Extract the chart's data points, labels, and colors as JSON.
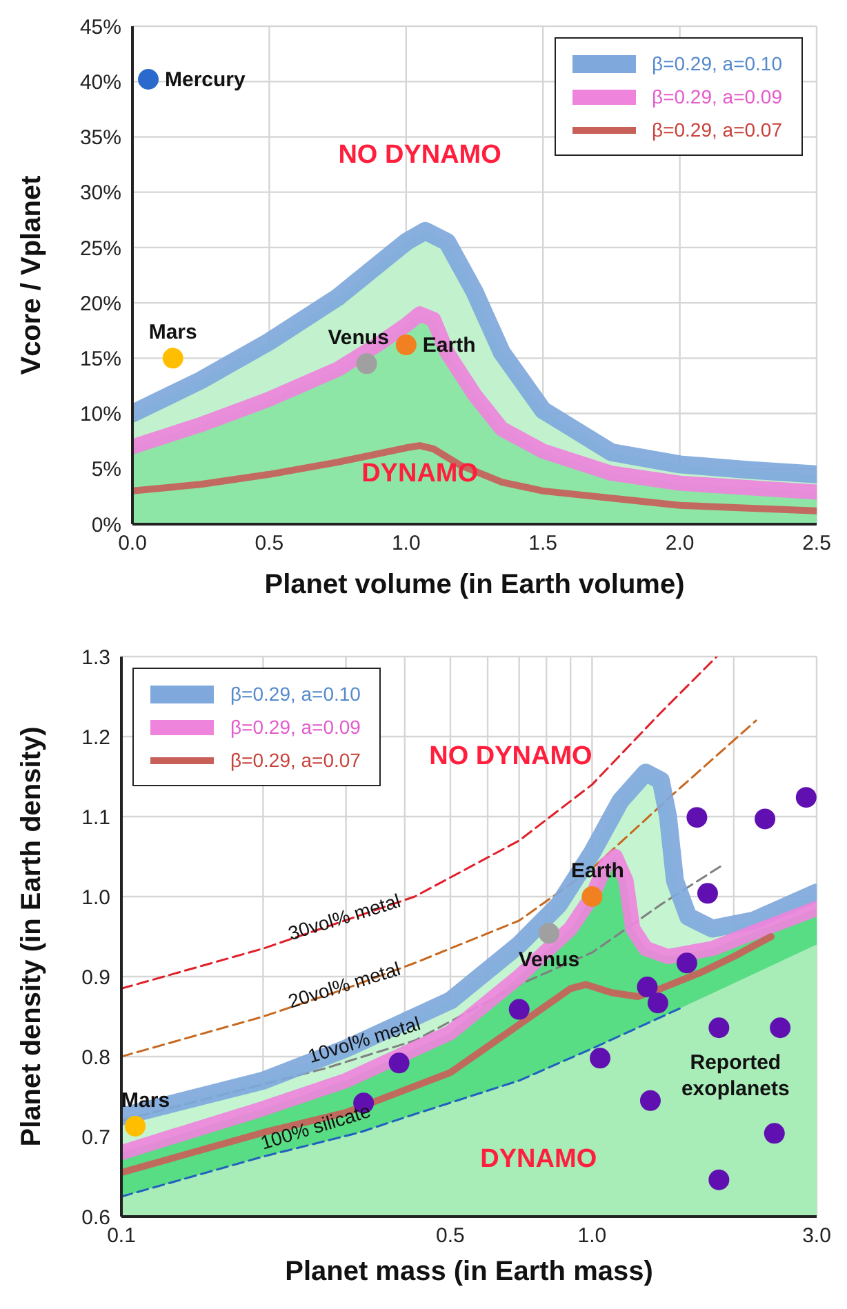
{
  "chart_data": [
    {
      "type": "line",
      "xlabel": "Planet volume (in Earth volume)",
      "ylabel": "Vcore / Vplanet",
      "xlim": [
        0,
        2.5
      ],
      "ylim": [
        0,
        45
      ],
      "xticks": [
        {
          "value": 0,
          "label": "0.0"
        },
        0.5,
        {
          "value": 1,
          "label": "1.0"
        },
        1.5,
        {
          "value": 2,
          "label": "2.0"
        },
        2.5
      ],
      "yticks": [
        {
          "value": 0,
          "label": "0%"
        },
        {
          "value": 5,
          "label": "5%"
        },
        {
          "value": 10,
          "label": "10%"
        },
        {
          "value": 15,
          "label": "15%"
        },
        {
          "value": 20,
          "label": "20%"
        },
        {
          "value": 25,
          "label": "25%"
        },
        {
          "value": 30,
          "label": "30%"
        },
        {
          "value": 35,
          "label": "35%"
        },
        {
          "value": 40,
          "label": "40%"
        },
        {
          "value": 45,
          "label": "45%"
        }
      ],
      "grid": true,
      "legend": "top right",
      "annotations": [
        "NO DYNAMO",
        "DYNAMO"
      ],
      "series": [
        {
          "type": "area",
          "color": "#c2f2cd",
          "x": [
            0,
            0.25,
            0.5,
            0.75,
            0.9,
            1.0,
            1.07,
            1.15,
            1.25,
            1.35,
            1.5,
            1.75,
            2.0,
            2.25,
            2.5
          ],
          "values": [
            10,
            13,
            16.5,
            20.5,
            23.5,
            25.5,
            26.5,
            25.5,
            21,
            15.5,
            10.3,
            6.5,
            5.4,
            4.9,
            4.5
          ]
        },
        {
          "type": "area",
          "color": "#8ee6a6",
          "x": [
            0,
            0.25,
            0.5,
            0.75,
            0.9,
            1.0,
            1.05,
            1.1,
            1.15,
            1.25,
            1.35,
            1.5,
            1.75,
            2.0,
            2.5
          ],
          "values": [
            7,
            9,
            11.3,
            14,
            16.3,
            18,
            19,
            18.5,
            15.5,
            11.7,
            8.6,
            6.6,
            4.6,
            3.7,
            2.9
          ]
        },
        {
          "name": "β=0.29, a=0.10",
          "color": "#7fa8dc",
          "x": [
            0,
            0.25,
            0.5,
            0.75,
            0.9,
            1.0,
            1.07,
            1.15,
            1.25,
            1.35,
            1.5,
            1.75,
            2.0,
            2.25,
            2.5
          ],
          "values": [
            10,
            13,
            16.5,
            20.5,
            23.5,
            25.5,
            26.5,
            25.5,
            21,
            15.5,
            10.3,
            6.5,
            5.4,
            4.9,
            4.5
          ]
        },
        {
          "name": "β=0.29, a=0.09",
          "color": "#ee84dc",
          "x": [
            0,
            0.25,
            0.5,
            0.75,
            0.9,
            1.0,
            1.05,
            1.1,
            1.15,
            1.25,
            1.35,
            1.5,
            1.75,
            2.0,
            2.5
          ],
          "values": [
            7,
            9,
            11.3,
            14,
            16.3,
            18,
            19,
            18.5,
            15.5,
            11.7,
            8.6,
            6.6,
            4.6,
            3.7,
            2.9
          ]
        },
        {
          "name": "β=0.29, a=0.07",
          "color": "#c8605a",
          "x": [
            0,
            0.25,
            0.5,
            0.75,
            1.0,
            1.05,
            1.1,
            1.2,
            1.35,
            1.5,
            2.0,
            2.5
          ],
          "values": [
            3,
            3.6,
            4.5,
            5.6,
            6.9,
            7.1,
            6.8,
            5.3,
            3.8,
            3,
            1.7,
            1.2
          ]
        },
        {
          "type": "scatter",
          "name": "Mercury",
          "color": "#2a6acc",
          "marker": "circle",
          "x": [
            0.058
          ],
          "values": [
            40.2
          ]
        },
        {
          "type": "scatter",
          "name": "Mars",
          "color": "#ffbf00",
          "marker": "circle",
          "x": [
            0.148
          ],
          "values": [
            15
          ]
        },
        {
          "type": "scatter",
          "name": "Venus",
          "color": "#a0a0a0",
          "marker": "circle",
          "x": [
            0.856
          ],
          "values": [
            14.5
          ]
        },
        {
          "type": "scatter",
          "name": "Earth",
          "color": "#f08020",
          "marker": "circle",
          "x": [
            1.0
          ],
          "values": [
            16.2
          ]
        }
      ]
    },
    {
      "type": "line",
      "xlabel": "Planet mass (in Earth mass)",
      "ylabel": "Planet density (in Earth density)",
      "log": "x",
      "xlim": [
        0.1,
        3
      ],
      "ylim": [
        0.6,
        1.3
      ],
      "xticks": [
        0.1,
        {
          "value": 0.2,
          "label": null
        },
        {
          "value": 0.3,
          "label": null
        },
        {
          "value": 0.4,
          "label": null
        },
        0.5,
        {
          "value": 0.6,
          "label": null
        },
        {
          "value": 0.7,
          "label": null
        },
        {
          "value": 0.8,
          "label": null
        },
        {
          "value": 0.9,
          "label": null
        },
        {
          "value": 1,
          "label": "1.0"
        },
        {
          "value": 2,
          "label": null
        },
        {
          "value": 3,
          "label": "3.0"
        }
      ],
      "yticks": [
        0.6,
        0.7,
        0.8,
        0.9,
        {
          "value": 1,
          "label": "1.0"
        },
        1.1,
        1.2,
        1.3
      ],
      "grid": true,
      "legend": "top left",
      "annotations": [
        "NO DYNAMO",
        "DYNAMO"
      ],
      "series": [
        {
          "type": "area",
          "color": "#c4f4d0",
          "x": [
            0.1,
            0.2,
            0.3,
            0.5,
            0.7,
            0.85,
            1.0,
            1.15,
            1.3,
            1.4,
            1.45,
            1.5,
            1.6,
            1.8,
            2.2,
            3.0
          ],
          "values": [
            0.725,
            0.77,
            0.81,
            0.87,
            0.94,
            0.99,
            1.055,
            1.12,
            1.155,
            1.145,
            1.1,
            1.02,
            0.975,
            0.96,
            0.97,
            1.005
          ]
        },
        {
          "type": "area",
          "color": "#58dc84",
          "x": [
            0.1,
            0.2,
            0.3,
            0.5,
            0.7,
            0.9,
            1.0,
            1.07,
            1.12,
            1.18,
            1.22,
            1.3,
            1.45,
            1.8,
            2.2,
            3.0
          ],
          "values": [
            0.68,
            0.735,
            0.77,
            0.83,
            0.9,
            0.96,
            1.0,
            1.04,
            1.05,
            1.02,
            0.96,
            0.935,
            0.925,
            0.935,
            0.955,
            0.985
          ]
        },
        {
          "type": "area",
          "color": "#a8ecb8",
          "x": [
            0.1,
            0.2,
            0.32,
            0.42,
            0.7,
            1.0,
            1.56,
            3.0
          ],
          "values": [
            0.625,
            0.675,
            0.705,
            0.728,
            0.77,
            0.81,
            0.862,
            0.94
          ]
        },
        {
          "name": "30vol% metal",
          "color": "#e0202a",
          "line_style": "dashed",
          "x": [
            0.1,
            0.2,
            0.42,
            0.7,
            1.0,
            1.4,
            1.84
          ],
          "values": [
            0.885,
            0.935,
            1.0,
            1.07,
            1.14,
            1.23,
            1.3
          ]
        },
        {
          "name": "20vol% metal",
          "color": "#c86820",
          "line_style": "dashed",
          "x": [
            0.1,
            0.2,
            0.3,
            0.42,
            0.7,
            1.0,
            1.5,
            2.23
          ],
          "values": [
            0.8,
            0.85,
            0.885,
            0.917,
            0.97,
            1.035,
            1.13,
            1.22
          ]
        },
        {
          "name": "10vol% metal",
          "color": "#808080",
          "line_style": "dashed",
          "x": [
            0.1,
            0.27,
            0.42,
            0.7,
            1.0,
            1.4,
            1.9
          ],
          "values": [
            0.72,
            0.785,
            0.82,
            0.89,
            0.93,
            0.99,
            1.04
          ]
        },
        {
          "name": "100% silicate",
          "color": "#2060c0",
          "line_style": "dashed",
          "x": [
            0.1,
            0.2,
            0.32,
            0.42,
            0.7,
            1.0,
            1.56
          ],
          "values": [
            0.625,
            0.675,
            0.705,
            0.728,
            0.77,
            0.81,
            0.862
          ]
        },
        {
          "name": "β=0.29, a=0.10",
          "color": "#7fa8dc",
          "x": [
            0.1,
            0.2,
            0.3,
            0.5,
            0.7,
            0.85,
            1.0,
            1.15,
            1.3,
            1.4,
            1.45,
            1.5,
            1.6,
            1.8,
            2.2,
            3.0
          ],
          "values": [
            0.725,
            0.77,
            0.81,
            0.87,
            0.94,
            0.99,
            1.055,
            1.12,
            1.155,
            1.145,
            1.1,
            1.02,
            0.975,
            0.96,
            0.97,
            1.005
          ]
        },
        {
          "name": "β=0.29, a=0.09",
          "color": "#ee84dc",
          "x": [
            0.1,
            0.2,
            0.3,
            0.5,
            0.7,
            0.9,
            1.0,
            1.07,
            1.12,
            1.18,
            1.22,
            1.3,
            1.45,
            1.8,
            2.2,
            3.0
          ],
          "values": [
            0.68,
            0.735,
            0.77,
            0.83,
            0.9,
            0.96,
            1.0,
            1.04,
            1.05,
            1.02,
            0.96,
            0.935,
            0.925,
            0.935,
            0.955,
            0.985
          ]
        },
        {
          "name": "β=0.29, a=0.07",
          "color": "#c8605a",
          "x": [
            0.1,
            0.2,
            0.3,
            0.5,
            0.7,
            0.9,
            0.97,
            1.1,
            1.25,
            1.4,
            1.7,
            2.0,
            2.4
          ],
          "values": [
            0.655,
            0.705,
            0.73,
            0.78,
            0.84,
            0.885,
            0.89,
            0.88,
            0.875,
            0.885,
            0.905,
            0.925,
            0.95
          ]
        },
        {
          "type": "scatter",
          "name": "Mars",
          "color": "#ffbf00",
          "marker": "circle",
          "x": [
            0.107
          ],
          "values": [
            0.713
          ]
        },
        {
          "type": "scatter",
          "name": "Venus",
          "color": "#a0a0a0",
          "marker": "circle",
          "x": [
            0.81
          ],
          "values": [
            0.954
          ]
        },
        {
          "type": "scatter",
          "name": "Earth",
          "color": "#f08020",
          "marker": "circle",
          "x": [
            1.0
          ],
          "values": [
            1.0
          ]
        },
        {
          "type": "scatter",
          "name": "Reported exoplanets",
          "color": "#6010b0",
          "marker": "circle",
          "x": [
            1.67,
            2.33,
            2.85,
            1.76,
            1.59,
            1.31,
            1.38,
            0.7,
            1.04,
            1.33,
            1.86,
            2.51,
            2.44,
            1.86,
            0.389,
            0.327
          ],
          "values": [
            1.099,
            1.097,
            1.124,
            1.004,
            0.917,
            0.887,
            0.867,
            0.859,
            0.798,
            0.745,
            0.836,
            0.836,
            0.704,
            0.646,
            0.792,
            0.742
          ]
        }
      ]
    }
  ]
}
